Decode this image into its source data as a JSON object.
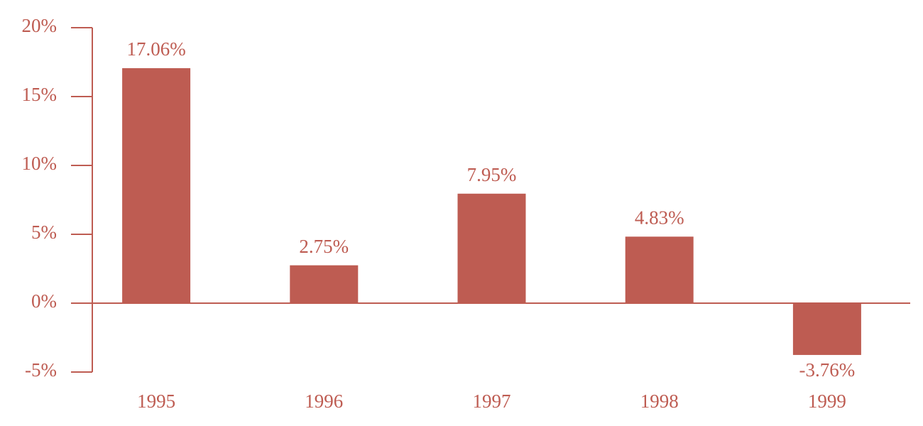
{
  "chart_data": {
    "type": "bar",
    "categories": [
      "1995",
      "1996",
      "1997",
      "1998",
      "1999"
    ],
    "values": [
      17.06,
      2.75,
      7.95,
      4.83,
      -3.76
    ],
    "value_labels": [
      "17.06%",
      "2.75%",
      "7.95%",
      "4.83%",
      "-3.76%"
    ],
    "color": "#be5c52",
    "ylim": [
      -5,
      20
    ],
    "yticks": [
      {
        "value": -5,
        "label": "-5%"
      },
      {
        "value": 0,
        "label": "0%"
      },
      {
        "value": 5,
        "label": "5%"
      },
      {
        "value": 10,
        "label": "10%"
      },
      {
        "value": 15,
        "label": "15%"
      },
      {
        "value": 20,
        "label": "20%"
      }
    ],
    "grid": false
  }
}
